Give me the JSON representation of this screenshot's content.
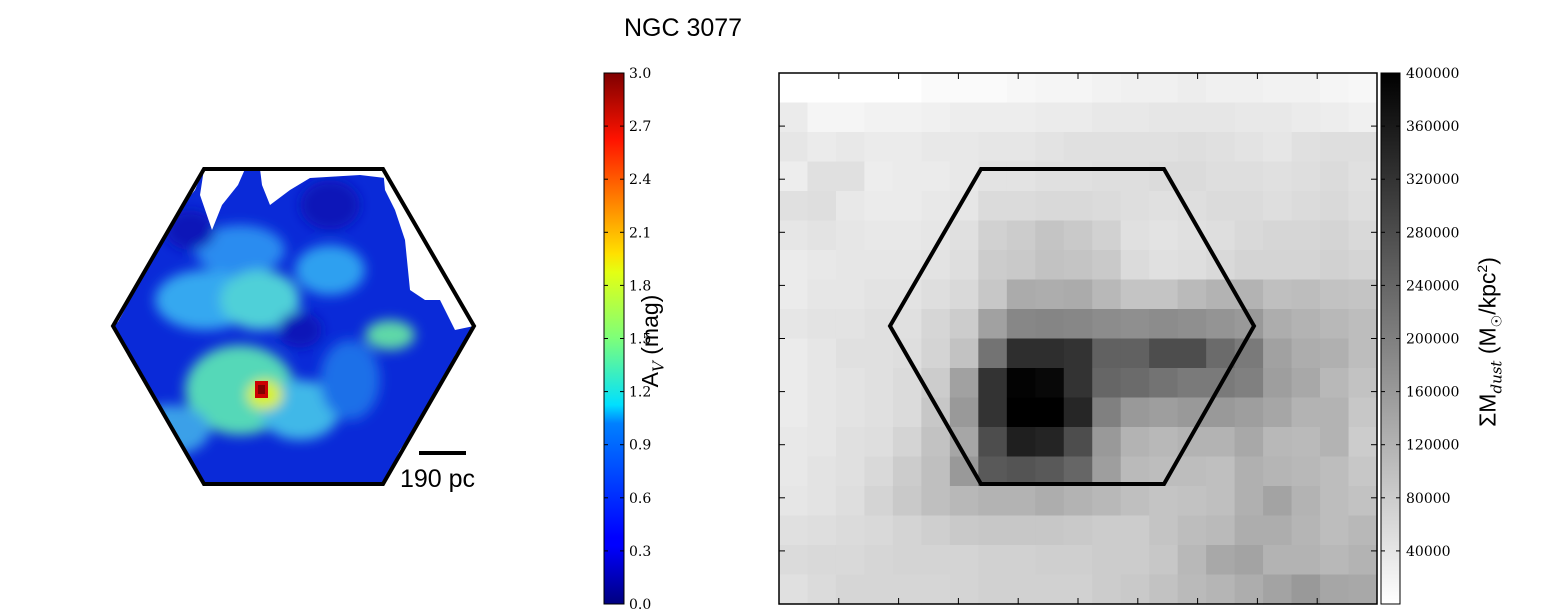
{
  "title": "NGC 3077",
  "chart_data": [
    {
      "type": "heatmap",
      "description_role": "extinction map",
      "scale_bar_label": "190 pc",
      "colorbar": {
        "label": "AV (mag)",
        "label_main": "A",
        "label_sub": "V",
        "label_tail": " (mag)",
        "colormap": "jet",
        "range": [
          0.0,
          3.0
        ],
        "ticks": [
          "0.0",
          "0.3",
          "0.6",
          "0.9",
          "1.2",
          "1.5",
          "1.8",
          "2.1",
          "2.4",
          "2.7",
          "3.0"
        ]
      },
      "peak_value": 3.0,
      "typical_value": 0.6
    },
    {
      "type": "heatmap",
      "description_role": "dust mass surface density map",
      "colorbar": {
        "label": "ΣMdust (M☉/kpc²)",
        "label_main": "ΣM",
        "label_sub": "dust",
        "label_tail_1": " (M",
        "label_tail_sub": "☉",
        "label_tail_2": "/kpc",
        "label_tail_sup": "2",
        "label_tail_3": ")",
        "colormap": "gray_r",
        "range": [
          0,
          400000
        ],
        "ticks": [
          "40000",
          "80000",
          "120000",
          "160000",
          "200000",
          "240000",
          "280000",
          "320000",
          "360000",
          "400000"
        ]
      },
      "grid_rows": 18,
      "grid_cols": 21,
      "values": [
        [
          100,
          100,
          100,
          100,
          100,
          98,
          98,
          98,
          97,
          96,
          96,
          95,
          94,
          94,
          93,
          94,
          94,
          95,
          95,
          96,
          97
        ],
        [
          92,
          96,
          96,
          95,
          95,
          94,
          93,
          93,
          93,
          92,
          92,
          91,
          91,
          90,
          90,
          90,
          91,
          91,
          92,
          93,
          94
        ],
        [
          90,
          92,
          91,
          92,
          92,
          91,
          91,
          90,
          90,
          89,
          88,
          88,
          88,
          88,
          87,
          88,
          89,
          90,
          88,
          87,
          87
        ],
        [
          93,
          88,
          88,
          93,
          92,
          92,
          91,
          89,
          89,
          88,
          88,
          87,
          87,
          86,
          86,
          87,
          87,
          88,
          87,
          86,
          88
        ],
        [
          88,
          87,
          91,
          92,
          92,
          91,
          90,
          86,
          86,
          85,
          85,
          86,
          87,
          88,
          87,
          86,
          86,
          87,
          86,
          85,
          87
        ],
        [
          90,
          89,
          90,
          91,
          91,
          90,
          88,
          82,
          80,
          77,
          79,
          82,
          88,
          89,
          88,
          87,
          85,
          84,
          84,
          83,
          85
        ],
        [
          92,
          91,
          90,
          90,
          90,
          89,
          87,
          80,
          79,
          76,
          77,
          79,
          86,
          88,
          87,
          85,
          83,
          83,
          83,
          82,
          83
        ],
        [
          92,
          90,
          90,
          89,
          89,
          87,
          85,
          78,
          67,
          68,
          67,
          72,
          77,
          77,
          73,
          70,
          70,
          75,
          74,
          76,
          77
        ],
        [
          90,
          89,
          89,
          88,
          88,
          84,
          80,
          63,
          53,
          52,
          53,
          55,
          56,
          55,
          56,
          58,
          60,
          68,
          70,
          72,
          74
        ],
        [
          92,
          90,
          88,
          88,
          87,
          83,
          76,
          45,
          18,
          18,
          20,
          38,
          38,
          30,
          30,
          42,
          48,
          63,
          68,
          69,
          74
        ],
        [
          92,
          90,
          89,
          88,
          86,
          80,
          63,
          20,
          1,
          3,
          20,
          40,
          42,
          45,
          48,
          48,
          50,
          62,
          66,
          72,
          76
        ],
        [
          92,
          90,
          89,
          88,
          86,
          78,
          60,
          20,
          0,
          0,
          15,
          50,
          60,
          62,
          60,
          60,
          62,
          65,
          70,
          70,
          78
        ],
        [
          91,
          90,
          88,
          87,
          83,
          76,
          65,
          30,
          12,
          14,
          30,
          60,
          70,
          72,
          70,
          70,
          66,
          72,
          73,
          70,
          80
        ],
        [
          91,
          89,
          88,
          85,
          80,
          75,
          60,
          35,
          33,
          35,
          40,
          62,
          73,
          74,
          74,
          75,
          69,
          71,
          72,
          74,
          78
        ],
        [
          90,
          89,
          87,
          83,
          79,
          75,
          72,
          70,
          70,
          68,
          70,
          72,
          75,
          77,
          76,
          75,
          69,
          64,
          70,
          74,
          76
        ],
        [
          88,
          87,
          86,
          85,
          83,
          81,
          79,
          78,
          78,
          78,
          79,
          80,
          80,
          77,
          74,
          73,
          68,
          68,
          71,
          74,
          72
        ],
        [
          86,
          85,
          85,
          84,
          83,
          83,
          83,
          82,
          82,
          81,
          81,
          80,
          80,
          78,
          72,
          66,
          64,
          70,
          70,
          72,
          70
        ],
        [
          88,
          86,
          84,
          84,
          84,
          84,
          83,
          82,
          82,
          82,
          82,
          80,
          79,
          76,
          73,
          71,
          68,
          64,
          60,
          65,
          66
        ]
      ]
    }
  ]
}
